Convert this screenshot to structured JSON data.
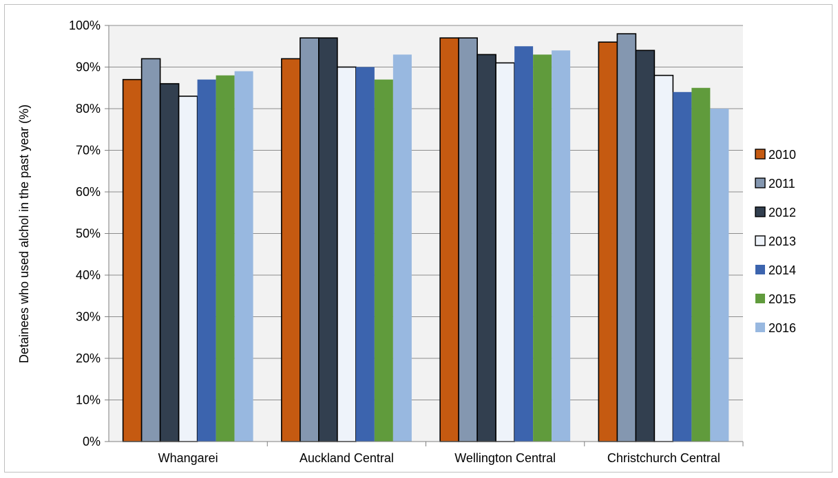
{
  "chart_data": {
    "type": "bar",
    "title": "",
    "xlabel": "",
    "ylabel": "Detainees  who used alchol in the past year (%)",
    "ylim": [
      0,
      100
    ],
    "y_tick_step": 10,
    "y_tick_suffix": "%",
    "grid": true,
    "legend_position": "right",
    "categories": [
      "Whangarei",
      "Auckland Central",
      "Wellington Central",
      "Christchurch Central"
    ],
    "series": [
      {
        "name": "2010",
        "color": "#c55a11",
        "values": [
          87,
          92,
          97,
          96
        ]
      },
      {
        "name": "2011",
        "color": "#8497b0",
        "values": [
          92,
          97,
          97,
          98
        ]
      },
      {
        "name": "2012",
        "color": "#323f4f",
        "values": [
          86,
          97,
          93,
          94
        ]
      },
      {
        "name": "2013",
        "color": "#eef3fa",
        "values": [
          83,
          90,
          91,
          88
        ]
      },
      {
        "name": "2014",
        "color": "#3c64ae",
        "values": [
          87,
          90,
          95,
          84
        ]
      },
      {
        "name": "2015",
        "color": "#609b3c",
        "values": [
          88,
          87,
          93,
          85
        ]
      },
      {
        "name": "2016",
        "color": "#98b8e0",
        "values": [
          89,
          93,
          94,
          80
        ]
      }
    ],
    "outlined_series": [
      "2010",
      "2011",
      "2012",
      "2013"
    ]
  }
}
